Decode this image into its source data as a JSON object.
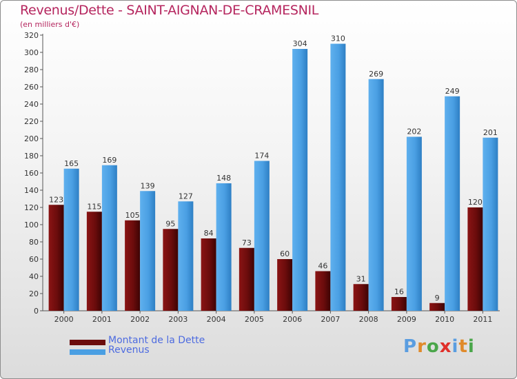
{
  "title": "Revenus/Dette - SAINT-AIGNAN-DE-CRAMESNIL",
  "subtitle": "(en milliers d'€)",
  "colors": {
    "dette": "#6b0c0c",
    "revenus": "#4a9fe3",
    "title": "#b5255e",
    "legend_text": "#4d6be0"
  },
  "legend": [
    {
      "label": "Montant de la Dette",
      "series": "dette"
    },
    {
      "label": "Revenus",
      "series": "revenus"
    }
  ],
  "logo": {
    "text": "Proxiti"
  },
  "chart_data": {
    "type": "bar",
    "title": "Revenus/Dette - SAINT-AIGNAN-DE-CRAMESNIL",
    "ylabel": "(en milliers d'€)",
    "xlabel": "",
    "ylim": [
      0,
      320
    ],
    "ytick_step": 20,
    "grid": false,
    "legend_position": "bottom-left",
    "categories": [
      "2000",
      "2001",
      "2002",
      "2003",
      "2004",
      "2005",
      "2006",
      "2007",
      "2008",
      "2009",
      "2010",
      "2011"
    ],
    "series": [
      {
        "name": "Montant de la Dette",
        "values": [
          123,
          115,
          105,
          95,
          84,
          73,
          60,
          46,
          31,
          16,
          9,
          120
        ]
      },
      {
        "name": "Revenus",
        "values": [
          165,
          169,
          139,
          127,
          148,
          174,
          304,
          310,
          269,
          202,
          249,
          201
        ]
      }
    ]
  }
}
